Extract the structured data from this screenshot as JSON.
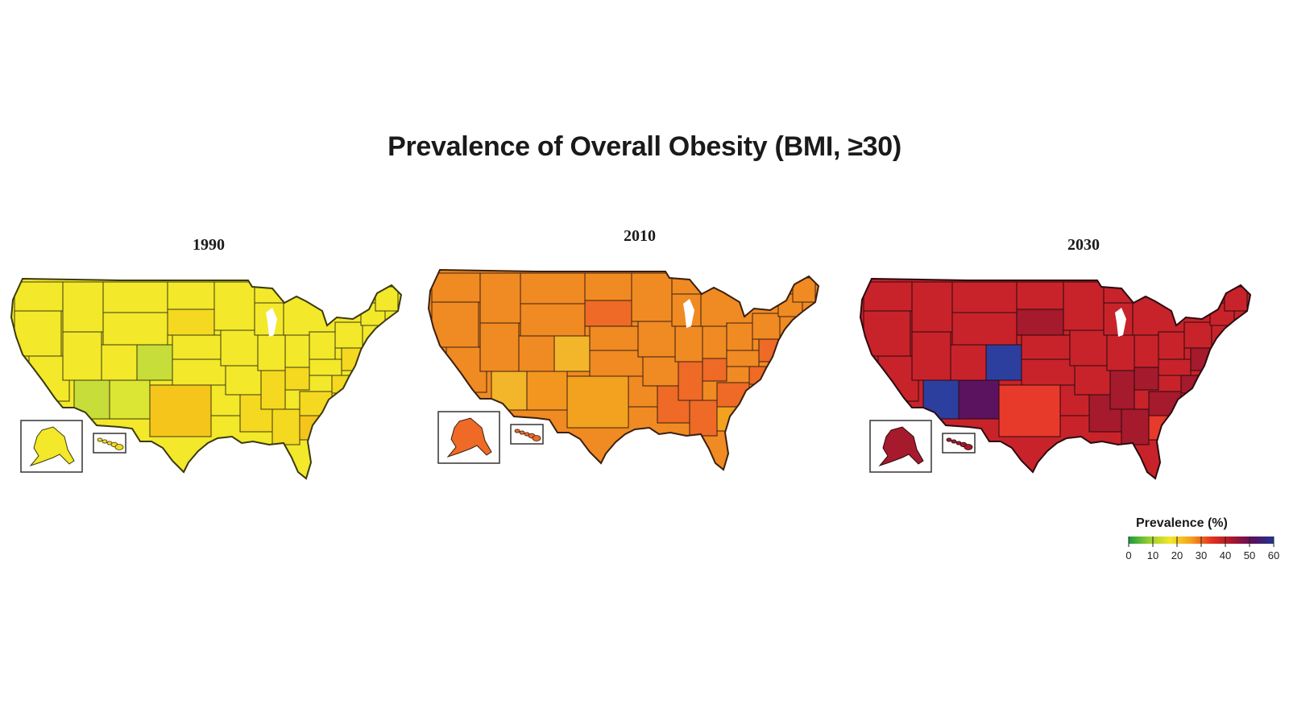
{
  "title": "Prevalence of Overall Obesity (BMI, ≥30)",
  "panels": [
    {
      "year": "1990",
      "colors": {
        "base": "#f3e82a",
        "darker": "#f5d820",
        "gold": "#f5c51c",
        "green": "#c6dd3a",
        "lightgreen": "#dbe533",
        "outline": "#3a3a10"
      }
    },
    {
      "year": "2010",
      "colors": {
        "base": "#f08a22",
        "darker": "#ee6a26",
        "gold": "#f3a21f",
        "green": "#f3b52a",
        "lightgreen": "#f2961f",
        "outline": "#3a2010"
      }
    },
    {
      "year": "2030",
      "colors": {
        "base": "#c8232a",
        "darker": "#a51a2c",
        "gold": "#e83a2a",
        "green": "#2c3f9e",
        "lightgreen": "#5b1360",
        "outline": "#2a0a10"
      }
    }
  ],
  "legend": {
    "title": "Prevalence (%)",
    "ticks": [
      "0",
      "10",
      "20",
      "30",
      "40",
      "50",
      "60"
    ],
    "gradient": [
      "#1a9c3e",
      "#9acd32",
      "#f2e72a",
      "#f6a11c",
      "#e3321f",
      "#a8162b",
      "#5a1060",
      "#20358f"
    ]
  }
}
